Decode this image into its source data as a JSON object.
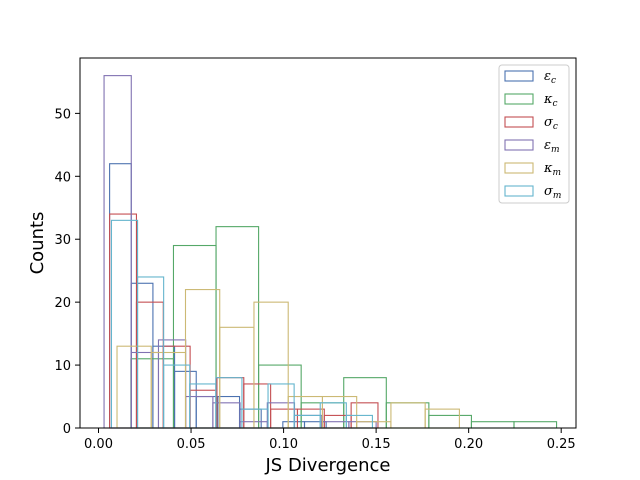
{
  "chart_data": {
    "type": "histogram",
    "xlabel": "JS Divergence",
    "ylabel": "Counts",
    "xlim": [
      -0.01,
      0.258
    ],
    "ylim": [
      0,
      58.8
    ],
    "xticks": [
      "0.00",
      "0.05",
      "0.10",
      "0.15",
      "0.20",
      "0.25"
    ],
    "yticks": [
      "0",
      "10",
      "20",
      "30",
      "40",
      "50"
    ],
    "legend_position": "top-right",
    "series": [
      {
        "name": "ε_c",
        "symbol": "ε",
        "sub": "c",
        "color": "#4c72b0",
        "edges": [
          0.006,
          0.0177,
          0.0294,
          0.0411,
          0.0528,
          0.0645,
          0.0762,
          0.0879,
          0.0996,
          0.1113,
          0.123
        ],
        "counts": [
          42,
          23,
          13,
          9,
          5,
          5,
          3,
          0,
          1,
          1
        ]
      },
      {
        "name": "κ_c",
        "symbol": "κ",
        "sub": "c",
        "color": "#55a868",
        "edges": [
          0.0175,
          0.0405,
          0.0635,
          0.0865,
          0.1095,
          0.1325,
          0.1555,
          0.1785,
          0.2015,
          0.2245,
          0.2475
        ],
        "counts": [
          11,
          29,
          32,
          10,
          4,
          8,
          4,
          2,
          1,
          1
        ]
      },
      {
        "name": "σ_c",
        "symbol": "σ",
        "sub": "c",
        "color": "#c44e52",
        "edges": [
          0.006,
          0.0205,
          0.035,
          0.0495,
          0.064,
          0.0785,
          0.093,
          0.1075,
          0.122,
          0.1365,
          0.151
        ],
        "counts": [
          34,
          20,
          13,
          6,
          8,
          7,
          3,
          3,
          2,
          4
        ]
      },
      {
        "name": "ε_m",
        "symbol": "ε",
        "sub": "m",
        "color": "#8172b2",
        "edges": [
          0.003,
          0.0177,
          0.0324,
          0.0471,
          0.0618,
          0.0765,
          0.0912,
          0.1059,
          0.1206,
          0.1353,
          0.15
        ],
        "counts": [
          56,
          12,
          14,
          5,
          4,
          1,
          4,
          2,
          1,
          1
        ]
      },
      {
        "name": "κ_m",
        "symbol": "κ",
        "sub": "m",
        "color": "#ccb974",
        "edges": [
          0.01,
          0.0285,
          0.047,
          0.0655,
          0.084,
          0.1025,
          0.121,
          0.1395,
          0.158,
          0.1765,
          0.195
        ],
        "counts": [
          13,
          12,
          22,
          16,
          20,
          5,
          5,
          1,
          4,
          3
        ]
      },
      {
        "name": "σ_m",
        "symbol": "σ",
        "sub": "m",
        "color": "#64b5cd",
        "edges": [
          0.007,
          0.0211,
          0.0352,
          0.0493,
          0.0634,
          0.0775,
          0.0916,
          0.1057,
          0.1198,
          0.1339,
          0.148
        ],
        "counts": [
          33,
          24,
          10,
          7,
          8,
          3,
          7,
          2,
          4,
          2
        ]
      }
    ]
  }
}
